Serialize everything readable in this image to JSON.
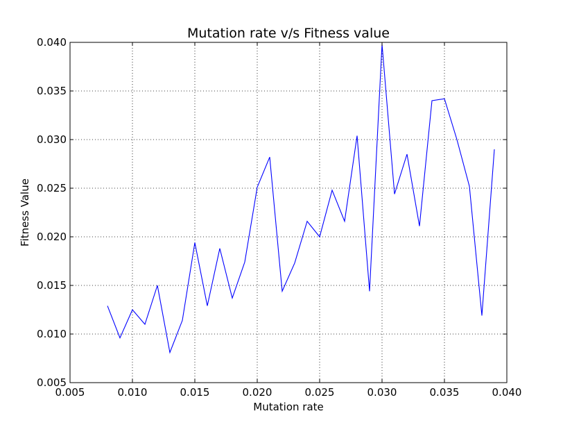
{
  "chart_data": {
    "type": "line",
    "title": "Mutation rate v/s Fitness value",
    "xlabel": "Mutation rate",
    "ylabel": "Fitness Value",
    "xlim": [
      0.005,
      0.04
    ],
    "ylim": [
      0.005,
      0.04
    ],
    "xticks": [
      "0.005",
      "0.010",
      "0.015",
      "0.020",
      "0.025",
      "0.030",
      "0.035",
      "0.040"
    ],
    "yticks": [
      "0.005",
      "0.010",
      "0.015",
      "0.020",
      "0.025",
      "0.030",
      "0.035",
      "0.040"
    ],
    "grid": true,
    "series": [
      {
        "color": "#0000ff",
        "x": [
          0.008,
          0.009,
          0.01,
          0.011,
          0.012,
          0.013,
          0.014,
          0.015,
          0.016,
          0.017,
          0.018,
          0.019,
          0.02,
          0.021,
          0.022,
          0.023,
          0.024,
          0.025,
          0.026,
          0.027,
          0.028,
          0.029,
          0.03,
          0.031,
          0.032,
          0.033,
          0.034,
          0.035,
          0.036,
          0.037,
          0.038,
          0.039
        ],
        "y": [
          0.0129,
          0.0096,
          0.0125,
          0.011,
          0.015,
          0.0081,
          0.0114,
          0.0194,
          0.0129,
          0.0188,
          0.0137,
          0.0174,
          0.0251,
          0.0282,
          0.0144,
          0.0173,
          0.0216,
          0.02,
          0.0248,
          0.0216,
          0.0304,
          0.0144,
          0.0398,
          0.0244,
          0.0285,
          0.0211,
          0.034,
          0.0342,
          0.03,
          0.0252,
          0.0119,
          0.029
        ]
      }
    ]
  }
}
